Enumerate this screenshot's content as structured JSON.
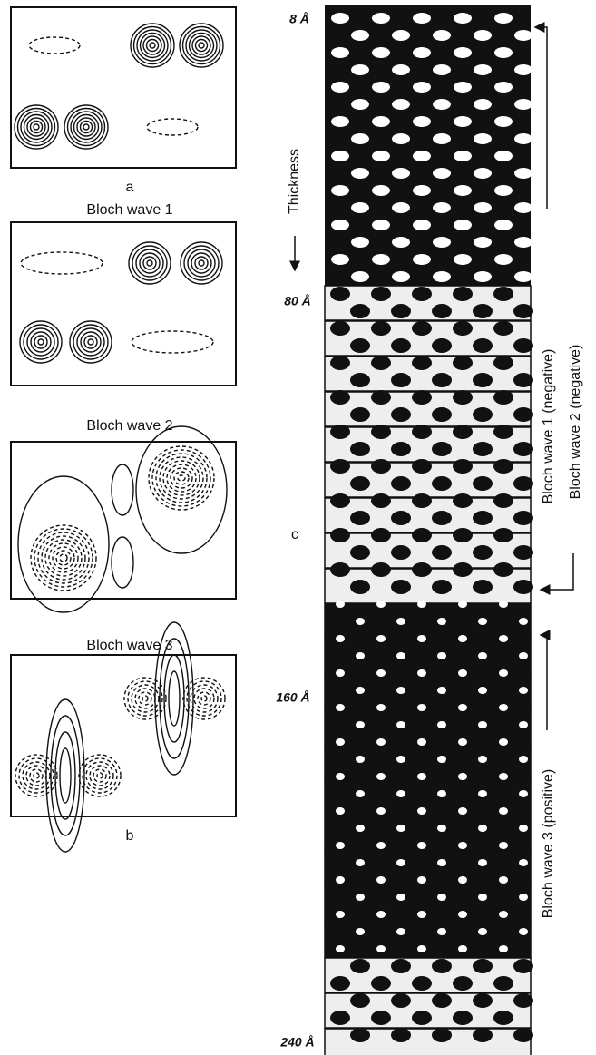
{
  "panels": {
    "a": {
      "label": "a"
    },
    "b": {
      "label": "b",
      "titles": [
        "Bloch wave 1",
        "Bloch wave 2",
        "Bloch wave 3"
      ]
    },
    "c": {
      "label": "c",
      "thickness_label": "Thickness",
      "thickness_marks": [
        "8 Å",
        "80 Å",
        "160 Å",
        "240 Å"
      ],
      "annotations": [
        "Bloch wave 1 (negative)",
        "Bloch wave 2 (negative)",
        "Bloch wave 3 (positive)"
      ]
    }
  }
}
